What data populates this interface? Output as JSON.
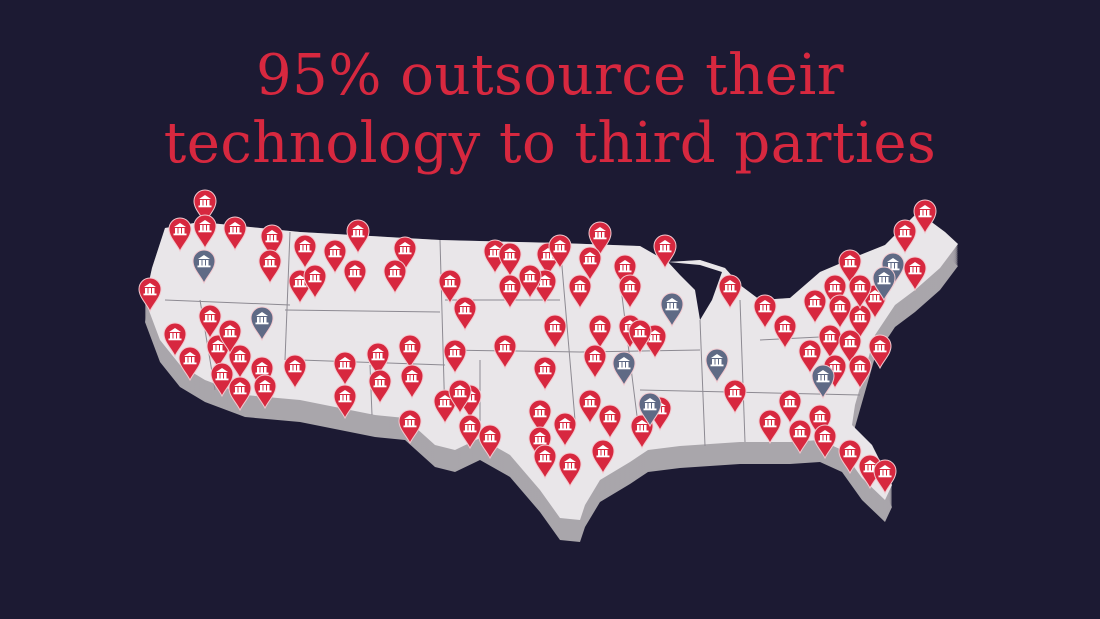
{
  "headline": {
    "line1": "95% outsource their",
    "line2": "technology to third parties"
  },
  "colors": {
    "background": "#1c1a33",
    "headline": "#d7283f",
    "pin_outsourced": "#d7283f",
    "pin_in_house": "#5f6a85",
    "map_surface": "#e9e6e9",
    "map_side": "#a9a6ab"
  },
  "map": {
    "region": "United States",
    "pin_icon": "bank-icon",
    "pin_types": [
      "outsourced",
      "in-house"
    ]
  }
}
